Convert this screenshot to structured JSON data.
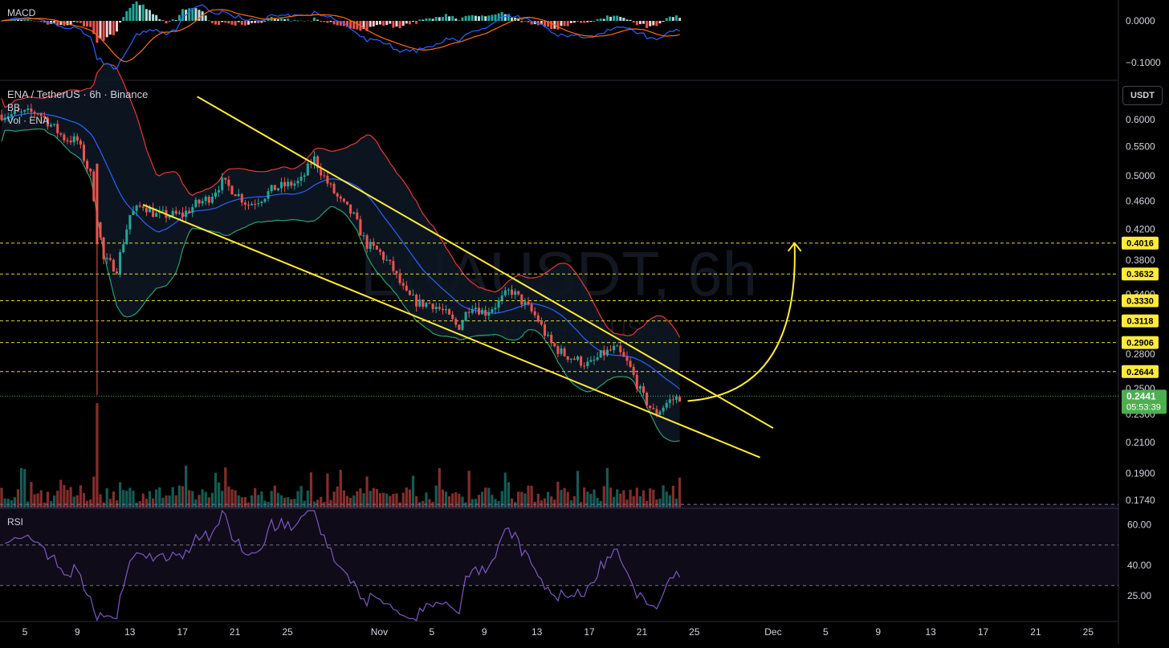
{
  "symbol_title": "ENA / TetherUS · 6h · Binance",
  "indicators": {
    "bb": "BB",
    "vol": "Vol · ENA",
    "macd": "MACD",
    "rsi": "RSI"
  },
  "watermark": {
    "main": "ENAUSDT, 6h",
    "sub": "ENA / TetherUS"
  },
  "currency_button": "USDT",
  "colors": {
    "background": "#000000",
    "up": "#26a69a",
    "down": "#ef5350",
    "bb_upper": "#e53935",
    "bb_lower": "#2e9e6e",
    "bb_basis": "#2962ff",
    "trendline": "#ffeb3b",
    "level": "#ffeb3b",
    "macd": "#2962ff",
    "signal": "#ff6d00",
    "rsi": "#7e57c2",
    "last_price": "#4caf50"
  },
  "chart_data": {
    "type": "candlestick",
    "title": "ENA / TetherUS · 6h · Binance",
    "ylabel": "USDT",
    "scale": "log",
    "ylim": [
      0.17,
      0.66
    ],
    "y_ticks": [
      "0.6000",
      "0.5500",
      "0.5000",
      "0.4600",
      "0.4200",
      "0.3800",
      "0.3400",
      "0.3100",
      "0.2800",
      "0.2500",
      "0.2300",
      "0.2100",
      "0.1900",
      "0.1740"
    ],
    "x_ticks": [
      "5",
      "9",
      "13",
      "17",
      "21",
      "25",
      "Nov",
      "5",
      "9",
      "13",
      "17",
      "21",
      "25",
      "Dec",
      "5",
      "9",
      "13",
      "17",
      "21",
      "25"
    ],
    "levels": [
      "0.4016",
      "0.3632",
      "0.3330",
      "0.3118",
      "0.2906",
      "0.2644"
    ],
    "last_price": {
      "value": "0.2441",
      "countdown": "05:53:39"
    },
    "price_path": [
      [
        "Oct 4",
        0.61
      ],
      [
        "Oct 6",
        0.615
      ],
      [
        "Oct 8",
        0.565
      ],
      [
        "Oct 9",
        0.56
      ],
      [
        "Oct 10",
        0.5
      ],
      [
        "Oct 11",
        0.38
      ],
      [
        "Oct 12",
        0.37
      ],
      [
        "Oct 13",
        0.44
      ],
      [
        "Oct 14",
        0.455
      ],
      [
        "Oct 15",
        0.44
      ],
      [
        "Oct 16",
        0.44
      ],
      [
        "Oct 17",
        0.44
      ],
      [
        "Oct 18",
        0.455
      ],
      [
        "Oct 19",
        0.465
      ],
      [
        "Oct 20",
        0.49
      ],
      [
        "Oct 21",
        0.475
      ],
      [
        "Oct 22",
        0.455
      ],
      [
        "Oct 23",
        0.465
      ],
      [
        "Oct 24",
        0.48
      ],
      [
        "Oct 25",
        0.485
      ],
      [
        "Oct 26",
        0.49
      ],
      [
        "Oct 27",
        0.53
      ],
      [
        "Oct 28",
        0.49
      ],
      [
        "Oct 29",
        0.46
      ],
      [
        "Oct 30",
        0.44
      ],
      [
        "Oct 31",
        0.4
      ],
      [
        "Nov 1",
        0.39
      ],
      [
        "Nov 2",
        0.37
      ],
      [
        "Nov 3",
        0.34
      ],
      [
        "Nov 4",
        0.33
      ],
      [
        "Nov 5",
        0.33
      ],
      [
        "Nov 6",
        0.32
      ],
      [
        "Nov 7",
        0.305
      ],
      [
        "Nov 8",
        0.33
      ],
      [
        "Nov 9",
        0.32
      ],
      [
        "Nov 10",
        0.33
      ],
      [
        "Nov 11",
        0.345
      ],
      [
        "Nov 12",
        0.33
      ],
      [
        "Nov 13",
        0.315
      ],
      [
        "Nov 14",
        0.29
      ],
      [
        "Nov 15",
        0.28
      ],
      [
        "Nov 16",
        0.275
      ],
      [
        "Nov 17",
        0.27
      ],
      [
        "Nov 18",
        0.28
      ],
      [
        "Nov 19",
        0.285
      ],
      [
        "Nov 20",
        0.27
      ],
      [
        "Nov 21",
        0.245
      ],
      [
        "Nov 22",
        0.23
      ],
      [
        "Nov 23",
        0.24
      ],
      [
        "Nov 24",
        0.2441
      ]
    ],
    "falling_channel": {
      "upper": [
        [
          "Oct 24",
          0.63
        ],
        [
          "Dec 1",
          0.22
        ]
      ],
      "lower": [
        [
          "Oct 14",
          0.455
        ],
        [
          "Nov 30",
          0.2
        ]
      ]
    },
    "projection": [
      [
        "Nov 24",
        0.2441
      ],
      [
        "Dec 3",
        0.4016
      ]
    ],
    "macd": {
      "y_ticks": [
        "0.0000",
        "−0.1000"
      ]
    },
    "rsi": {
      "y_ticks": [
        "60.00",
        "40.00",
        "25.00"
      ],
      "bands": [
        70,
        30
      ]
    }
  }
}
